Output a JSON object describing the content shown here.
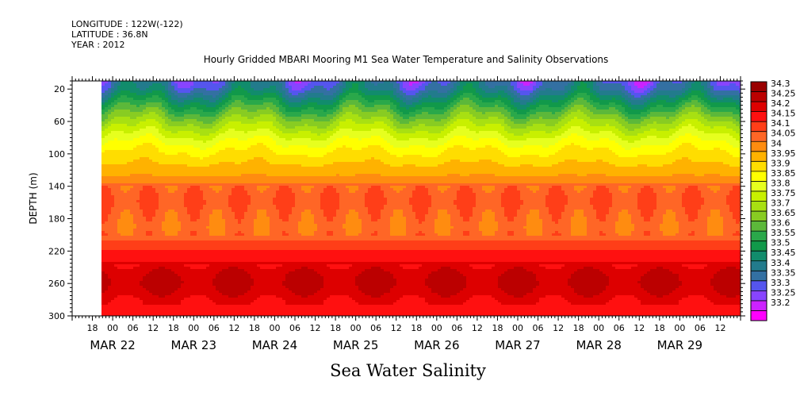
{
  "header": {
    "longitude": "LONGITUDE : 122W(-122)",
    "latitude": "LATITUDE : 36.8N",
    "year": "YEAR : 2012"
  },
  "chart_data": {
    "type": "heatmap",
    "title": "Hourly Gridded MBARI Mooring M1 Sea Water Temperature and Salinity Observations",
    "subtitle": "Sea Water Salinity",
    "ylabel": "DEPTH (m)",
    "xlabel": "",
    "ylim": [
      300,
      10
    ],
    "y_ticks": [
      "20",
      "60",
      "100",
      "140",
      "180",
      "220",
      "260",
      "300"
    ],
    "y_tick_values": [
      20,
      60,
      100,
      140,
      180,
      220,
      260,
      300
    ],
    "x_range_hours": [
      "MAR 21 12:00",
      "MAR 29 18:00"
    ],
    "x_hour_ticks": [
      "18",
      "00",
      "06",
      "12",
      "18",
      "00",
      "06",
      "12",
      "18",
      "00",
      "06",
      "12",
      "18",
      "00",
      "06",
      "12",
      "18",
      "00",
      "06",
      "12",
      "18",
      "00",
      "06",
      "12",
      "18",
      "00",
      "06",
      "12",
      "18",
      "00",
      "06",
      "12"
    ],
    "x_day_labels": [
      "MAR 22",
      "MAR 23",
      "MAR 24",
      "MAR 25",
      "MAR 26",
      "MAR 27",
      "MAR 28",
      "MAR 29"
    ],
    "data_start": "MAR 22 00:00",
    "colorbar": {
      "levels": [
        "34.3",
        "34.25",
        "34.2",
        "34.15",
        "34.1",
        "34.05",
        "34",
        "33.95",
        "33.9",
        "33.85",
        "33.8",
        "33.75",
        "33.7",
        "33.65",
        "33.6",
        "33.55",
        "33.5",
        "33.45",
        "33.4",
        "33.35",
        "33.3",
        "33.25",
        "33.2"
      ],
      "colors": [
        "#990000",
        "#bb0000",
        "#dd0000",
        "#ff1010",
        "#ff3e18",
        "#ff6626",
        "#ff8c10",
        "#ffb200",
        "#ffdd00",
        "#ffff00",
        "#e6ff1e",
        "#c8f000",
        "#a8e012",
        "#88cc22",
        "#5cb83a",
        "#2aa84a",
        "#11994a",
        "#118c6c",
        "#227b8c",
        "#3370a2",
        "#5555ee",
        "#8844ff",
        "#cc22ff",
        "#ff00ff"
      ]
    },
    "depth_profile": {
      "depths": [
        10,
        20,
        30,
        40,
        50,
        60,
        70,
        80,
        90,
        100,
        110,
        120,
        130,
        140,
        150,
        160,
        170,
        180,
        190,
        200,
        210,
        220,
        230,
        240,
        250,
        260,
        270,
        280,
        290,
        300
      ],
      "salinity": [
        33.38,
        33.42,
        33.5,
        33.58,
        33.65,
        33.72,
        33.78,
        33.84,
        33.89,
        33.93,
        33.96,
        34.0,
        34.03,
        34.07,
        34.09,
        34.1,
        34.08,
        34.07,
        34.06,
        34.07,
        34.12,
        34.16,
        34.19,
        34.22,
        34.25,
        34.26,
        34.24,
        34.21,
        34.19,
        34.18
      ]
    }
  }
}
